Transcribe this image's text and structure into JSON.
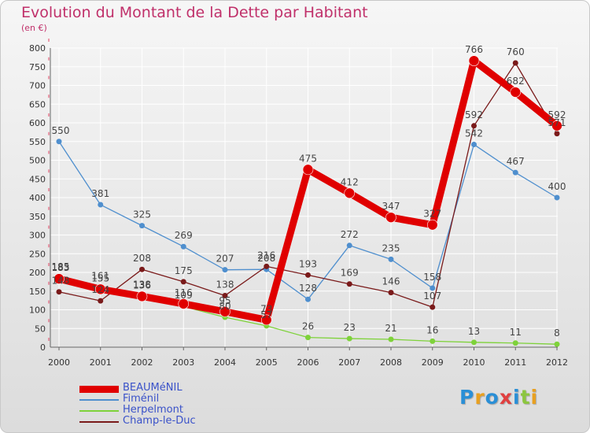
{
  "chart_data": {
    "type": "line",
    "title": "Evolution du Montant de la Dette par Habitant",
    "subtitle": "(en €)",
    "categories": [
      "2000",
      "2001",
      "2002",
      "2003",
      "2004",
      "2005",
      "2006",
      "2007",
      "2008",
      "2009",
      "2010",
      "2011",
      "2012"
    ],
    "ylim": [
      0,
      800
    ],
    "yticks": [
      "0",
      "50",
      "100",
      "150",
      "200",
      "250",
      "300",
      "350",
      "400",
      "450",
      "500",
      "550",
      "600",
      "650",
      "700",
      "750",
      "800"
    ],
    "grid": true,
    "legend_position": "bottom-left",
    "series": [
      {
        "name": "BEAUMéNIL",
        "color": "#e00000",
        "values": [
          183,
          155,
          136,
          116,
          95,
          73,
          475,
          412,
          347,
          327,
          766,
          682,
          592
        ],
        "labels": [
          "183",
          "155",
          "136",
          "116",
          "95",
          "73",
          "475",
          "412",
          "347",
          "327",
          "766",
          "682",
          "592"
        ]
      },
      {
        "name": "Fiménil",
        "color": "#4f8fce",
        "values": [
          550,
          381,
          325,
          269,
          207,
          208,
          128,
          272,
          235,
          158,
          542,
          467,
          400
        ],
        "labels": [
          "550",
          "381",
          "325",
          "269",
          "207",
          "208",
          "128",
          "272",
          "235",
          "158",
          "542",
          "467",
          "400"
        ]
      },
      {
        "name": "Herpelmont",
        "color": "#7ed23a",
        "values": [
          185,
          161,
          138,
          109,
          80,
          57,
          26,
          23,
          21,
          16,
          13,
          11,
          8
        ],
        "labels": [
          "185",
          "161",
          "138",
          "109",
          "80",
          "57",
          "26",
          "23",
          "21",
          "16",
          "13",
          "11",
          "8"
        ]
      },
      {
        "name": "Champ-le-Duc",
        "color": "#7a1a1a",
        "values": [
          148,
          124,
          208,
          175,
          138,
          216,
          193,
          169,
          146,
          107,
          592,
          760,
          571
        ],
        "labels": [
          "148",
          "124",
          "208",
          "175",
          "138",
          "216",
          "193",
          "169",
          "146",
          "107",
          "592",
          "760",
          "571"
        ]
      }
    ]
  },
  "logo": {
    "letters": [
      {
        "ch": "P",
        "color": "#2a8fd6"
      },
      {
        "ch": "r",
        "color": "#e8a020"
      },
      {
        "ch": "o",
        "color": "#2a8fd6"
      },
      {
        "ch": "x",
        "color": "#e04040"
      },
      {
        "ch": "i",
        "color": "#2a8fd6"
      },
      {
        "ch": "t",
        "color": "#8cc63f"
      },
      {
        "ch": "i",
        "color": "#e8a020"
      }
    ]
  }
}
